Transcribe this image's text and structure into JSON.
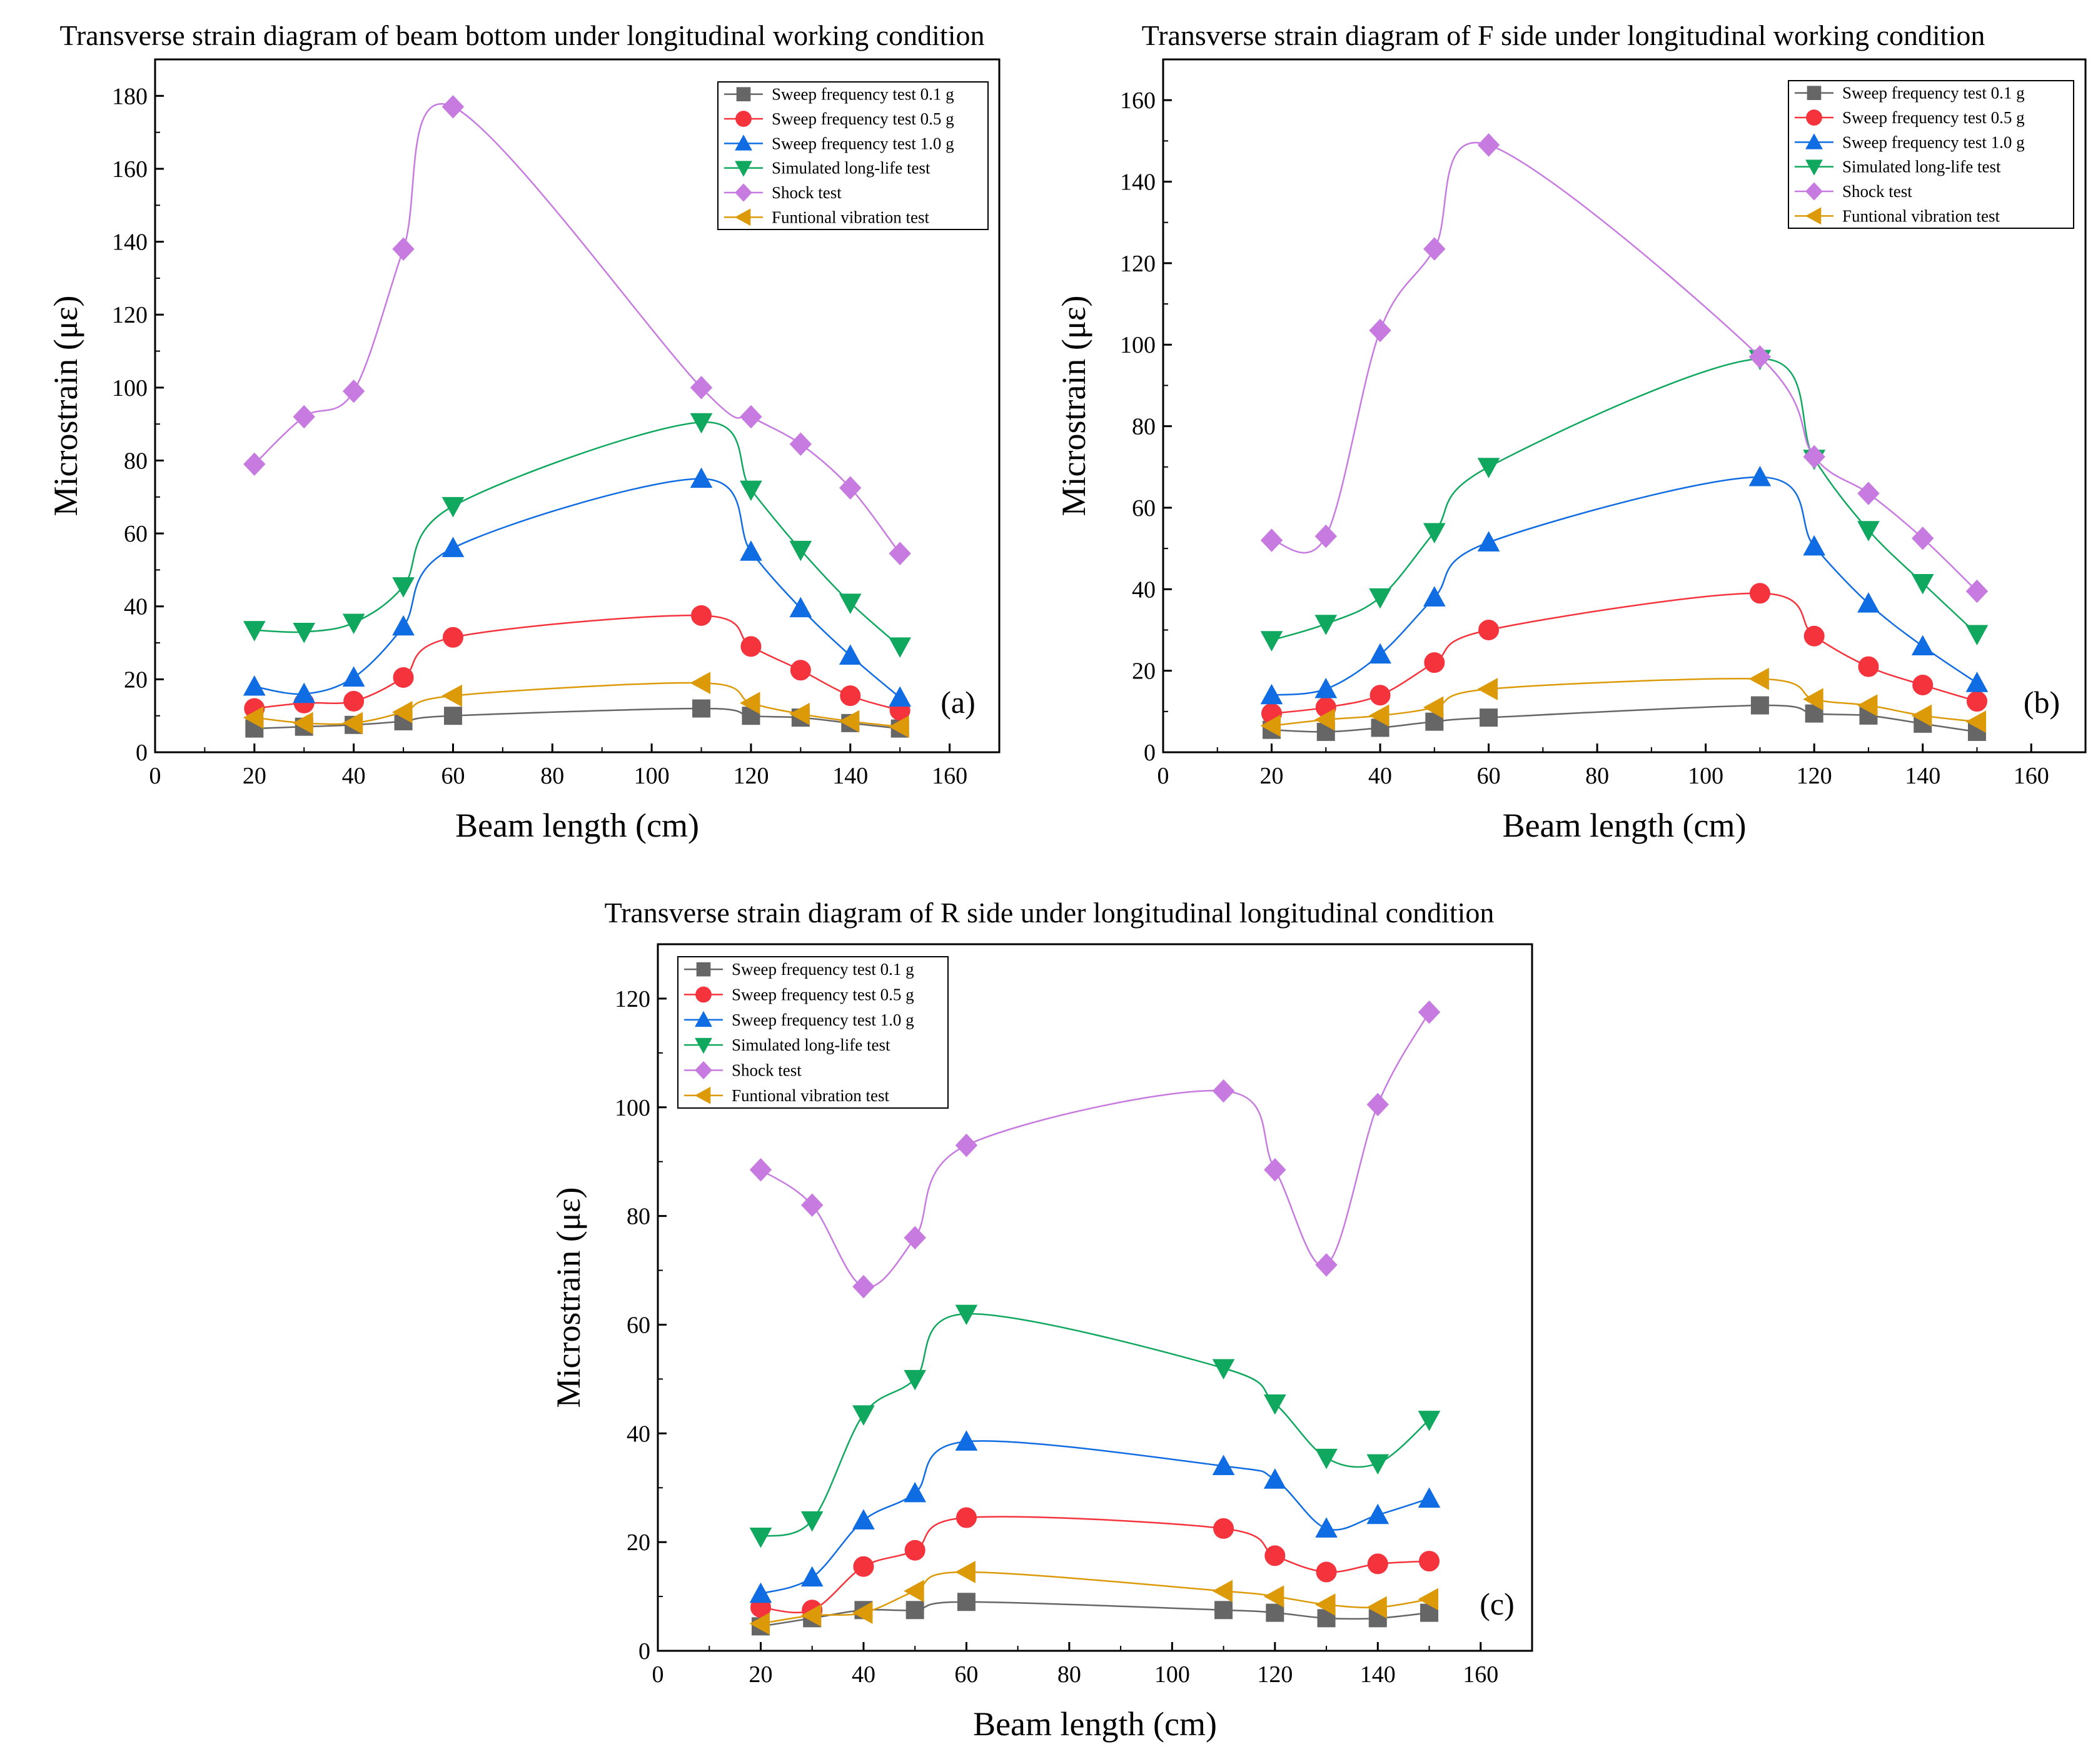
{
  "series_styles": [
    {
      "name": "Sweep frequency test 0.1 g",
      "color": "#666666",
      "marker": "square"
    },
    {
      "name": "Sweep frequency test 0.5 g",
      "color": "#f4333d",
      "marker": "circle"
    },
    {
      "name": "Sweep frequency test 1.0 g",
      "color": "#0f6ce3",
      "marker": "triangle-up"
    },
    {
      "name": "Simulated long-life test",
      "color": "#10a75e",
      "marker": "triangle-down"
    },
    {
      "name": "Shock test",
      "color": "#c77ae0",
      "marker": "diamond"
    },
    {
      "name": "Funtional vibration test",
      "color": "#dc9a08",
      "marker": "triangle-left"
    }
  ],
  "chart_data": [
    {
      "type": "line",
      "title": "Transverse strain diagram of beam bottom under longitudinal working condition",
      "xlabel": "Beam length (cm)",
      "ylabel": "Microstrain (με)",
      "panel_tag": "(a)",
      "xlim": [
        0,
        170
      ],
      "ylim": [
        0,
        190
      ],
      "xticks": [
        0,
        20,
        40,
        60,
        80,
        100,
        120,
        140,
        160
      ],
      "yticks": [
        0,
        20,
        40,
        60,
        80,
        100,
        120,
        140,
        160,
        180
      ],
      "legend_position": "top-right",
      "x": [
        20,
        30,
        40,
        50,
        60,
        110,
        120,
        130,
        140,
        150
      ],
      "series": [
        {
          "name": "Sweep frequency test 0.1 g",
          "values": [
            6.5,
            7.0,
            7.5,
            8.5,
            10.0,
            12.0,
            10.0,
            9.5,
            8.0,
            6.5
          ]
        },
        {
          "name": "Sweep frequency test 0.5 g",
          "values": [
            12.0,
            13.5,
            14.0,
            20.5,
            31.5,
            37.5,
            29.0,
            22.5,
            15.5,
            11.5
          ]
        },
        {
          "name": "Sweep frequency test 1.0 g",
          "values": [
            18.0,
            16.0,
            20.5,
            34.5,
            56.0,
            75.0,
            55.0,
            39.5,
            26.5,
            15.0
          ]
        },
        {
          "name": "Simulated long-life test",
          "values": [
            33.5,
            33.0,
            35.5,
            45.5,
            67.5,
            90.5,
            72.0,
            55.5,
            41.0,
            29.0
          ]
        },
        {
          "name": "Shock test",
          "values": [
            79.0,
            92.0,
            99.0,
            138.0,
            177.0,
            100.0,
            92.0,
            84.5,
            72.5,
            54.5
          ]
        },
        {
          "name": "Funtional vibration test",
          "values": [
            9.5,
            8.0,
            8.0,
            11.0,
            15.5,
            19.0,
            13.5,
            10.5,
            8.5,
            7.0
          ]
        }
      ]
    },
    {
      "type": "line",
      "title": "Transverse strain diagram of F side under longitudinal working condition",
      "xlabel": "Beam length (cm)",
      "ylabel": "Microstrain (με)",
      "panel_tag": "(b)",
      "xlim": [
        0,
        170
      ],
      "ylim": [
        0,
        170
      ],
      "xticks": [
        0,
        20,
        40,
        60,
        80,
        100,
        120,
        140,
        160
      ],
      "yticks": [
        0,
        20,
        40,
        60,
        80,
        100,
        120,
        140,
        160
      ],
      "legend_position": "top-right",
      "x": [
        20,
        30,
        40,
        50,
        60,
        110,
        120,
        130,
        140,
        150
      ],
      "series": [
        {
          "name": "Sweep frequency test 0.1 g",
          "values": [
            5.5,
            5.0,
            6.0,
            7.5,
            8.5,
            11.5,
            9.5,
            9.0,
            7.0,
            5.0
          ]
        },
        {
          "name": "Sweep frequency test 0.5 g",
          "values": [
            9.5,
            11.0,
            14.0,
            22.0,
            30.0,
            39.0,
            28.5,
            21.0,
            16.5,
            12.5
          ]
        },
        {
          "name": "Sweep frequency test 1.0 g",
          "values": [
            14.0,
            15.5,
            24.0,
            38.0,
            51.5,
            67.5,
            50.5,
            36.5,
            26.0,
            17.0
          ]
        },
        {
          "name": "Simulated long-life test",
          "values": [
            27.5,
            31.5,
            38.0,
            54.0,
            70.0,
            96.5,
            72.0,
            54.5,
            41.5,
            29.0
          ]
        },
        {
          "name": "Shock test",
          "values": [
            52.0,
            53.0,
            103.5,
            123.5,
            149.0,
            97.0,
            72.5,
            63.5,
            52.5,
            39.5
          ]
        },
        {
          "name": "Funtional vibration test",
          "values": [
            6.5,
            8.0,
            9.0,
            11.0,
            15.5,
            18.0,
            13.0,
            11.5,
            9.0,
            7.5
          ]
        }
      ]
    },
    {
      "type": "line",
      "title": "Transverse strain diagram of R side under longitudinal longitudinal condition",
      "xlabel": "Beam length (cm)",
      "ylabel": "Microstrain (με)",
      "panel_tag": "(c)",
      "xlim": [
        0,
        170
      ],
      "ylim": [
        0,
        130
      ],
      "xticks": [
        0,
        20,
        40,
        60,
        80,
        100,
        120,
        140,
        160
      ],
      "yticks": [
        0,
        20,
        40,
        60,
        80,
        100,
        120
      ],
      "legend_position": "top-left",
      "x": [
        20,
        30,
        40,
        50,
        60,
        110,
        120,
        130,
        140,
        150
      ],
      "series": [
        {
          "name": "Sweep frequency test 0.1 g",
          "values": [
            4.5,
            6.0,
            7.5,
            7.5,
            9.0,
            7.5,
            7.0,
            6.0,
            6.0,
            7.0
          ]
        },
        {
          "name": "Sweep frequency test 0.5 g",
          "values": [
            8.0,
            7.5,
            15.5,
            18.5,
            24.5,
            22.5,
            17.5,
            14.5,
            16.0,
            16.5
          ]
        },
        {
          "name": "Sweep frequency test 1.0 g",
          "values": [
            10.5,
            13.5,
            24.0,
            29.0,
            38.5,
            34.0,
            31.5,
            22.5,
            25.0,
            28.0
          ]
        },
        {
          "name": "Simulated long-life test",
          "values": [
            21.0,
            24.0,
            43.5,
            50.0,
            62.0,
            52.0,
            45.5,
            35.5,
            34.5,
            42.5
          ]
        },
        {
          "name": "Shock test",
          "values": [
            88.5,
            82.0,
            67.0,
            76.0,
            93.0,
            103.0,
            88.5,
            71.0,
            100.5,
            117.5
          ]
        },
        {
          "name": "Funtional vibration test",
          "values": [
            5.0,
            6.5,
            7.0,
            11.0,
            14.5,
            11.0,
            10.0,
            8.5,
            8.0,
            9.5
          ]
        }
      ]
    }
  ]
}
